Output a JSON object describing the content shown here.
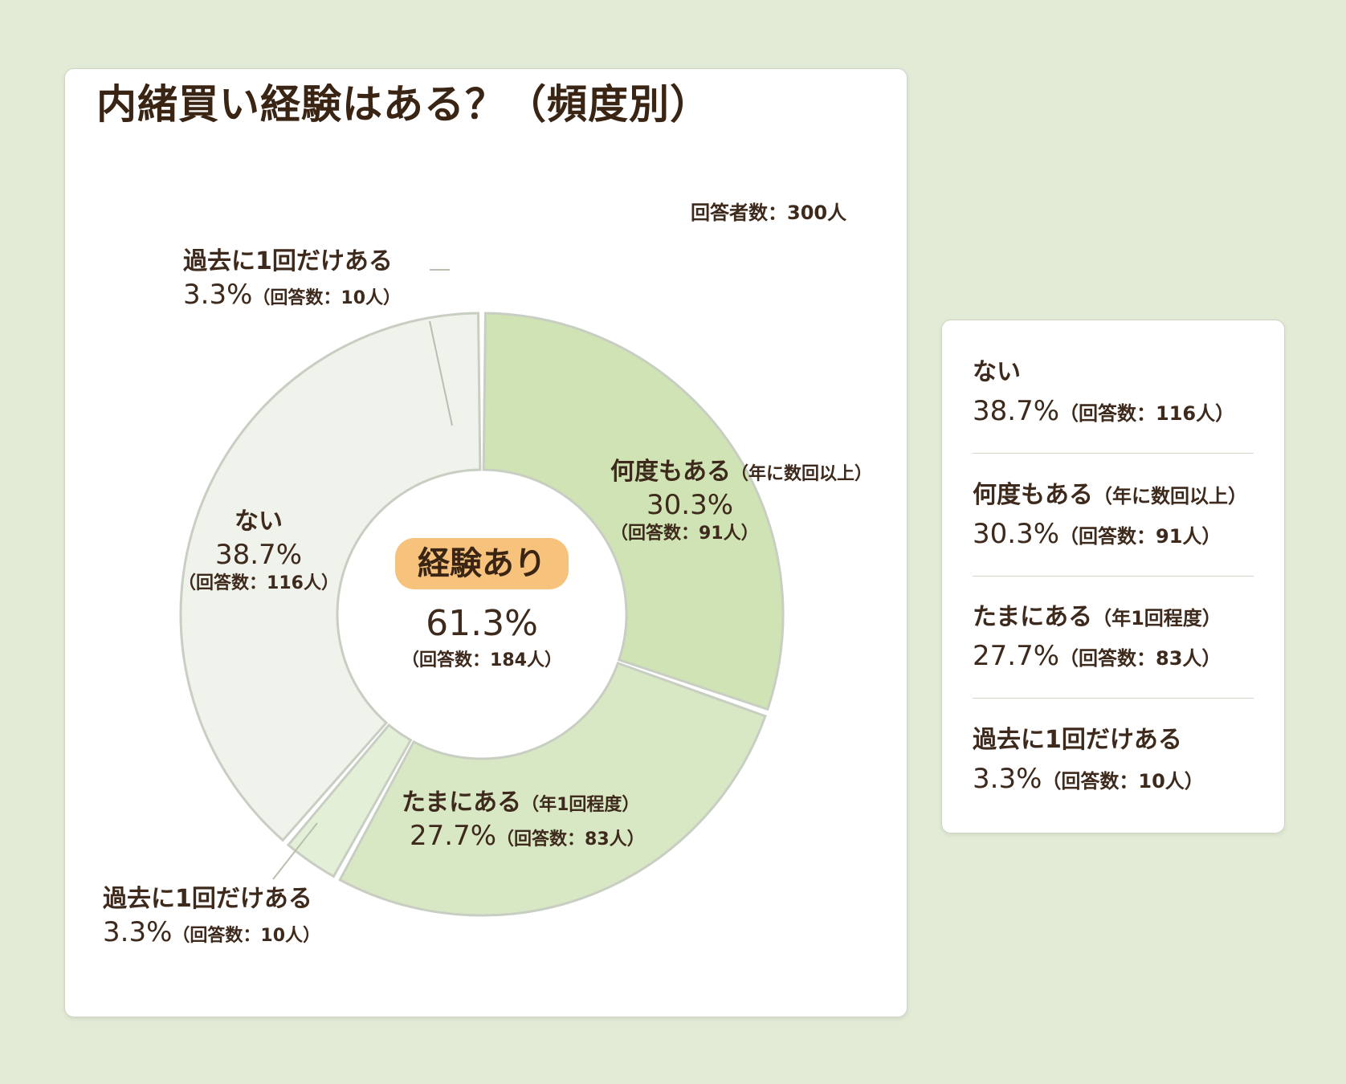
{
  "chart_data": {
    "type": "pie",
    "title": "内緒買い経験はある？（頻度別）",
    "respondents": "回答者数：300人",
    "slices": [
      {
        "name": "何度もある",
        "note": "（年に数回以上）",
        "percent": 30.3,
        "count": 91,
        "count_text": "（回答数：91人）",
        "color": "#cfe3b5"
      },
      {
        "name": "たまにある",
        "note": "（年1回程度）",
        "percent": 27.7,
        "count": 83,
        "count_text": "（回答数：83人）",
        "color": "#d8e8c4"
      },
      {
        "name": "過去に1回だけある",
        "note": "",
        "percent": 3.3,
        "count": 10,
        "count_text": "（回答数：10人）",
        "color": "#e4efd8"
      },
      {
        "name": "ない",
        "note": "",
        "percent": 38.7,
        "count": 116,
        "count_text": "（回答数：116人）",
        "color": "#f0f2ec"
      }
    ],
    "center": {
      "label": "経験あり",
      "percent": "61.3%",
      "count_text": "（回答数：184人）"
    }
  },
  "labels": {
    "many": {
      "name": "何度もある",
      "note": "（年に数回以上）",
      "pct": "30.3%",
      "count": "（回答数：91人）"
    },
    "sometimes": {
      "name": "たまにある",
      "note": "（年1回程度）",
      "pct": "27.7%",
      "count": "（回答数：83人）"
    },
    "once_top": {
      "name": "過去に1回だけある",
      "pct": "3.3%",
      "count": "（回答数：10人）"
    },
    "once_bottom": {
      "name": "過去に1回だけある",
      "pct": "3.3%",
      "count": "（回答数：10人）"
    },
    "none": {
      "name": "ない",
      "pct": "38.7%",
      "count": "（回答数：116人）"
    }
  },
  "legend": [
    {
      "name": "ない",
      "note": "",
      "pct": "38.7%",
      "count": "（回答数：116人）"
    },
    {
      "name": "何度もある",
      "note": "（年に数回以上）",
      "pct": "30.3%",
      "count": "（回答数：91人）"
    },
    {
      "name": "たまにある",
      "note": "（年1回程度）",
      "pct": "27.7%",
      "count": "（回答数：83人）"
    },
    {
      "name": "過去に1回だけある",
      "note": "",
      "pct": "3.3%",
      "count": "（回答数：10人）"
    }
  ]
}
